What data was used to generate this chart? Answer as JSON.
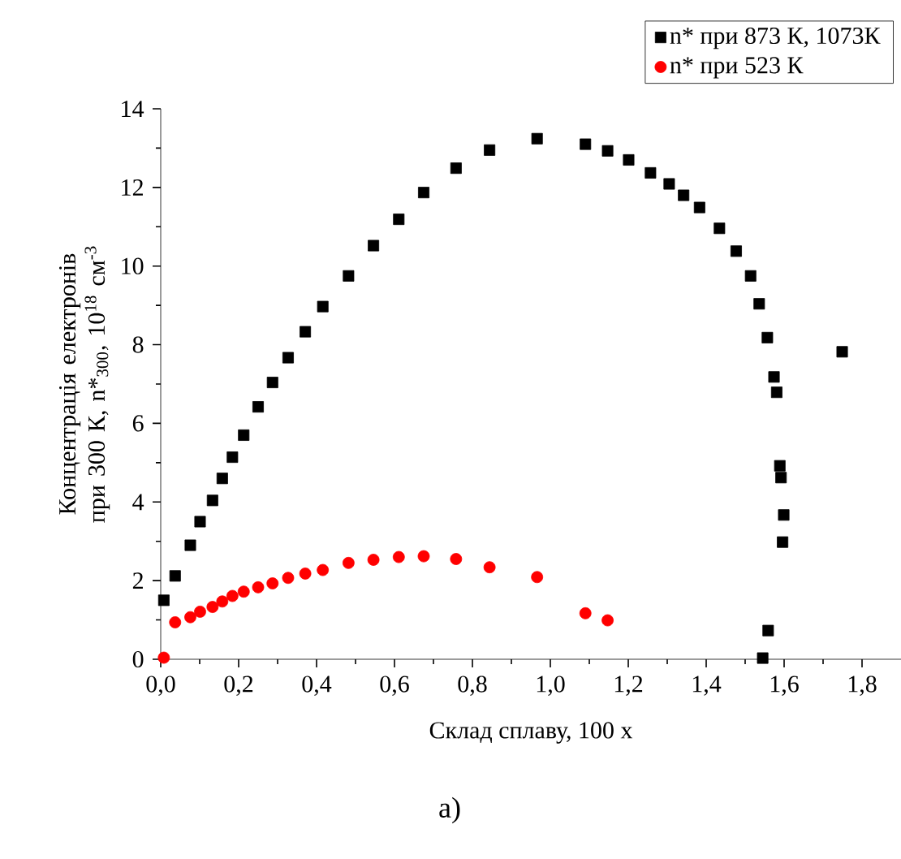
{
  "chart_data": {
    "type": "scatter",
    "xlabel": "Склад сплаву, 100 x",
    "ylabel": "Концентрація електронів при 300 К, n*$_{300}$, 10$^{18}$ см$^{-3}$",
    "annotations": [
      "а)"
    ],
    "xlim": [
      0,
      1.9
    ],
    "ylim": [
      0,
      14
    ],
    "xticks": [
      {
        "value": 0,
        "label": "0,0"
      },
      {
        "value": 0.2,
        "label": "0,2"
      },
      {
        "value": 0.4,
        "label": "0,4"
      },
      {
        "value": 0.6,
        "label": "0,6"
      },
      {
        "value": 0.8,
        "label": "0,8"
      },
      {
        "value": 1.0,
        "label": "1,0"
      },
      {
        "value": 1.2,
        "label": "1,2"
      },
      {
        "value": 1.4,
        "label": "1,4"
      },
      {
        "value": 1.6,
        "label": "1,6"
      },
      {
        "value": 1.8,
        "label": "1,8"
      }
    ],
    "yticks": [
      0,
      2,
      4,
      6,
      8,
      10,
      12,
      14
    ],
    "legend": "top right",
    "grid": false,
    "series": [
      {
        "name": "n* при 873 К, 1073К",
        "color": "#000000",
        "marker": "square",
        "x": [
          0.008,
          0.037,
          0.076,
          0.101,
          0.133,
          0.158,
          0.184,
          0.213,
          0.25,
          0.287,
          0.327,
          0.371,
          0.416,
          0.482,
          0.546,
          0.611,
          0.675,
          0.758,
          0.844,
          0.966,
          1.09,
          1.147,
          1.201,
          1.257,
          1.305,
          1.342,
          1.383,
          1.434,
          1.477,
          1.514,
          1.536,
          1.557,
          1.574,
          1.581,
          1.589,
          1.592,
          1.599,
          1.596,
          1.559,
          1.552,
          1.545,
          1.749
        ],
        "values": [
          1.5,
          2.12,
          2.9,
          3.5,
          4.04,
          4.6,
          5.14,
          5.7,
          6.42,
          7.04,
          7.67,
          8.33,
          8.97,
          9.75,
          10.52,
          11.19,
          11.87,
          12.49,
          12.95,
          13.24,
          13.1,
          12.93,
          12.7,
          12.37,
          12.09,
          11.8,
          11.49,
          10.96,
          10.38,
          9.75,
          9.04,
          8.18,
          7.18,
          6.79,
          4.92,
          4.62,
          3.67,
          2.98,
          0.73,
          null,
          0.03,
          7.82
        ]
      },
      {
        "name": "n* при 523 К",
        "color": "#ff0000",
        "marker": "circle",
        "x": [
          0.008,
          0.037,
          0.076,
          0.101,
          0.133,
          0.158,
          0.184,
          0.213,
          0.25,
          0.287,
          0.327,
          0.371,
          0.416,
          0.482,
          0.546,
          0.611,
          0.675,
          0.758,
          0.844,
          0.966,
          1.09,
          1.147
        ],
        "values": [
          0.04,
          0.94,
          1.07,
          1.21,
          1.33,
          1.47,
          1.61,
          1.72,
          1.83,
          1.93,
          2.07,
          2.18,
          2.27,
          2.45,
          2.53,
          2.6,
          2.62,
          2.55,
          2.34,
          2.09,
          1.17,
          0.99
        ]
      }
    ]
  }
}
